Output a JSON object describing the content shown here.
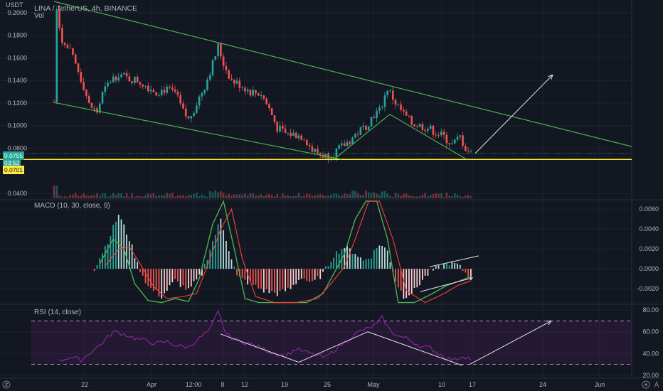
{
  "header": {
    "symbol_line": "LINA / TetherUS, 4h, BINANCE",
    "vol_label": "Vol",
    "currency": "USDT"
  },
  "price_badges": {
    "last": "0.0755",
    "countdown": "03:52",
    "support": "0.0701"
  },
  "indicators": {
    "macd_label": "MACD (10, 30, close, 9)",
    "rsi_label": "RSI (14, close)"
  },
  "colors": {
    "bg": "#131722",
    "up": "#26a69a",
    "down": "#ef5350",
    "trend": "#4caf50",
    "support": "#ffeb3b",
    "rsi": "#9c27b0",
    "macd_line": "#4caf50",
    "signal_line": "#f44336",
    "arrow": "#e0e3eb"
  },
  "chart_data": [
    {
      "type": "candlestick",
      "pane": "price",
      "y_ticks": [
        "0.0400",
        "0.0800",
        "0.1000",
        "0.1200",
        "0.1400",
        "0.1600",
        "0.1800",
        "0.2000"
      ],
      "y_tick_values": [
        0.04,
        0.08,
        0.1,
        0.12,
        0.14,
        0.16,
        0.18,
        0.2
      ],
      "ylim": [
        0.035,
        0.21
      ],
      "support_level": 0.0701,
      "x_ticks": [
        "22",
        "Apr",
        "12:00",
        "8",
        "12",
        "19",
        "25",
        "May",
        "10",
        "17",
        "24",
        "Jun"
      ],
      "close_path": [
        [
          0,
          0.121
        ],
        [
          1,
          0.205
        ],
        [
          3,
          0.175
        ],
        [
          6,
          0.165
        ],
        [
          9,
          0.148
        ],
        [
          11,
          0.135
        ],
        [
          13,
          0.118
        ],
        [
          16,
          0.112
        ],
        [
          18,
          0.128
        ],
        [
          21,
          0.14
        ],
        [
          24,
          0.146
        ],
        [
          27,
          0.142
        ],
        [
          31,
          0.14
        ],
        [
          34,
          0.136
        ],
        [
          38,
          0.13
        ],
        [
          41,
          0.132
        ],
        [
          45,
          0.129
        ],
        [
          48,
          0.112
        ],
        [
          50,
          0.105
        ],
        [
          53,
          0.12
        ],
        [
          56,
          0.135
        ],
        [
          59,
          0.155
        ],
        [
          61,
          0.17
        ],
        [
          63,
          0.155
        ],
        [
          66,
          0.14
        ],
        [
          70,
          0.135
        ],
        [
          73,
          0.13
        ],
        [
          77,
          0.128
        ],
        [
          80,
          0.115
        ],
        [
          83,
          0.098
        ],
        [
          86,
          0.093
        ],
        [
          90,
          0.092
        ],
        [
          93,
          0.09
        ],
        [
          96,
          0.078
        ],
        [
          99,
          0.075
        ],
        [
          101,
          0.073
        ],
        [
          104,
          0.076
        ],
        [
          107,
          0.081
        ],
        [
          110,
          0.087
        ],
        [
          113,
          0.094
        ],
        [
          116,
          0.1
        ],
        [
          119,
          0.11
        ],
        [
          121,
          0.113
        ],
        [
          124,
          0.133
        ],
        [
          127,
          0.12
        ],
        [
          130,
          0.11
        ],
        [
          133,
          0.102
        ],
        [
          136,
          0.1
        ],
        [
          139,
          0.098
        ],
        [
          142,
          0.094
        ],
        [
          145,
          0.09
        ],
        [
          148,
          0.083
        ],
        [
          151,
          0.09
        ],
        [
          153,
          0.08
        ],
        [
          155,
          0.0755
        ]
      ]
    },
    {
      "type": "bar",
      "pane": "macd",
      "y_ticks": [
        "-0.0020",
        "0.0000",
        "0.0020",
        "0.0040",
        "0.0060"
      ],
      "y_tick_values": [
        -0.002,
        0,
        0.002,
        0.004,
        0.006
      ],
      "ylim": [
        -0.0035,
        0.0068
      ],
      "histogram": [
        [
          15,
          0
        ],
        [
          20,
          0.0028
        ],
        [
          24,
          0.0055
        ],
        [
          28,
          0.003
        ],
        [
          31,
          0.0005
        ],
        [
          35,
          -0.0018
        ],
        [
          40,
          -0.0028
        ],
        [
          45,
          -0.0012
        ],
        [
          50,
          -0.0022
        ],
        [
          55,
          -0.0005
        ],
        [
          58,
          0.002
        ],
        [
          62,
          0.005
        ],
        [
          65,
          0.002
        ],
        [
          68,
          -0.0008
        ],
        [
          73,
          -0.0015
        ],
        [
          78,
          -0.0022
        ],
        [
          83,
          -0.0025
        ],
        [
          88,
          -0.002
        ],
        [
          92,
          -0.0008
        ],
        [
          96,
          -0.0015
        ],
        [
          100,
          -0.0005
        ],
        [
          104,
          0.0014
        ],
        [
          108,
          0.0022
        ],
        [
          112,
          0.0016
        ],
        [
          115,
          0.0008
        ],
        [
          118,
          0.0013
        ],
        [
          121,
          0.0025
        ],
        [
          124,
          0.0018
        ],
        [
          127,
          -0.0012
        ],
        [
          130,
          -0.0028
        ],
        [
          134,
          -0.0022
        ],
        [
          137,
          -0.0011
        ],
        [
          140,
          -0.0003
        ],
        [
          143,
          0.0001
        ],
        [
          147,
          0.0006
        ],
        [
          150,
          0.0004
        ],
        [
          153,
          -0.0004
        ],
        [
          155,
          -0.0009
        ]
      ],
      "macd_line": [
        [
          17,
          0.0005
        ],
        [
          22,
          0.003
        ],
        [
          26,
          0.002
        ],
        [
          30,
          -0.0015
        ],
        [
          35,
          -0.0032
        ],
        [
          40,
          -0.0034
        ],
        [
          45,
          -0.003
        ],
        [
          50,
          -0.0033
        ],
        [
          54,
          -0.001
        ],
        [
          59,
          0.0045
        ],
        [
          63,
          0.0075
        ],
        [
          67,
          0.002
        ],
        [
          71,
          -0.003
        ],
        [
          76,
          -0.0034
        ],
        [
          82,
          -0.0034
        ],
        [
          88,
          -0.0034
        ],
        [
          94,
          -0.0034
        ],
        [
          100,
          -0.0025
        ],
        [
          104,
          -0.0005
        ],
        [
          108,
          0.0015
        ],
        [
          112,
          0.005
        ],
        [
          116,
          0.0068
        ],
        [
          120,
          0.0068
        ],
        [
          124,
          0.003
        ],
        [
          128,
          -0.0034
        ],
        [
          134,
          -0.0034
        ],
        [
          140,
          -0.0026
        ],
        [
          146,
          -0.0017
        ],
        [
          152,
          -0.0011
        ],
        [
          155,
          -0.0008
        ]
      ],
      "signal_line": [
        [
          19,
          0.0003
        ],
        [
          24,
          0.002
        ],
        [
          28,
          0.0022
        ],
        [
          32,
          0.0005
        ],
        [
          37,
          -0.0018
        ],
        [
          42,
          -0.003
        ],
        [
          48,
          -0.0028
        ],
        [
          53,
          -0.0025
        ],
        [
          58,
          0.001
        ],
        [
          62,
          0.004
        ],
        [
          66,
          0.006
        ],
        [
          70,
          0.001
        ],
        [
          75,
          -0.0028
        ],
        [
          82,
          -0.0034
        ],
        [
          90,
          -0.0034
        ],
        [
          98,
          -0.003
        ],
        [
          103,
          -0.0015
        ],
        [
          108,
          0.0002
        ],
        [
          112,
          0.003
        ],
        [
          117,
          0.0068
        ],
        [
          121,
          0.0068
        ],
        [
          126,
          0.003
        ],
        [
          131,
          -0.0022
        ],
        [
          138,
          -0.0034
        ],
        [
          145,
          -0.0025
        ],
        [
          150,
          -0.0017
        ],
        [
          155,
          -0.0012
        ]
      ]
    },
    {
      "type": "line",
      "pane": "rsi",
      "y_ticks": [
        "20.00",
        "40.00",
        "60.00",
        "80.00"
      ],
      "y_tick_values": [
        20,
        40,
        60,
        80
      ],
      "ylim": [
        18,
        84
      ],
      "band": [
        30,
        70
      ],
      "values": [
        [
          2,
          33
        ],
        [
          6,
          37
        ],
        [
          10,
          34
        ],
        [
          14,
          42
        ],
        [
          18,
          50
        ],
        [
          22,
          60
        ],
        [
          26,
          58
        ],
        [
          30,
          54
        ],
        [
          34,
          52
        ],
        [
          38,
          49
        ],
        [
          42,
          51
        ],
        [
          46,
          47
        ],
        [
          50,
          46
        ],
        [
          54,
          54
        ],
        [
          58,
          62
        ],
        [
          61,
          78
        ],
        [
          64,
          58
        ],
        [
          67,
          53
        ],
        [
          70,
          51
        ],
        [
          74,
          48
        ],
        [
          78,
          44
        ],
        [
          82,
          40
        ],
        [
          86,
          38
        ],
        [
          90,
          44
        ],
        [
          94,
          41
        ],
        [
          98,
          38
        ],
        [
          101,
          36
        ],
        [
          105,
          45
        ],
        [
          108,
          50
        ],
        [
          111,
          56
        ],
        [
          114,
          61
        ],
        [
          117,
          63
        ],
        [
          120,
          67
        ],
        [
          122,
          73
        ],
        [
          125,
          61
        ],
        [
          128,
          56
        ],
        [
          131,
          54
        ],
        [
          134,
          50
        ],
        [
          137,
          46
        ],
        [
          140,
          45
        ],
        [
          143,
          40
        ],
        [
          146,
          36
        ],
        [
          149,
          34
        ],
        [
          152,
          38
        ],
        [
          155,
          35
        ]
      ]
    }
  ],
  "annotations": [
    "Descending channel",
    "Support 0.0701",
    "Projected breakout arrow",
    "MACD bullish divergence",
    "RSI bullish divergence"
  ]
}
